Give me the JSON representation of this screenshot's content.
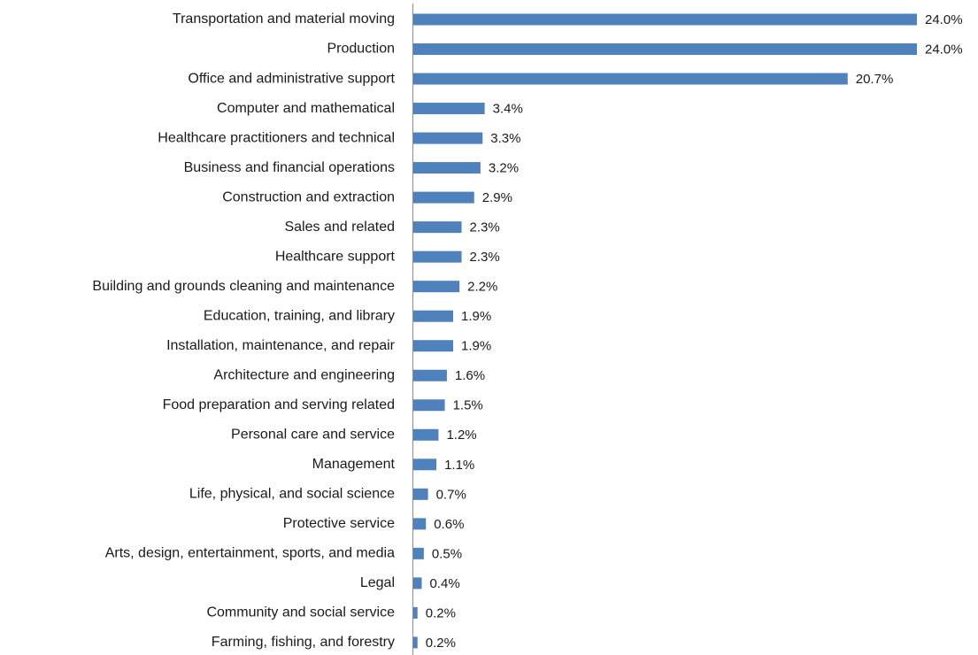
{
  "chart_data": {
    "type": "bar",
    "orientation": "horizontal",
    "color": "#4f81bd",
    "categories": [
      "Transportation and material moving",
      "Production",
      "Office and administrative support",
      "Computer and mathematical",
      "Healthcare practitioners and technical",
      "Business and financial operations",
      "Construction and extraction",
      "Sales and related",
      "Healthcare support",
      "Building and grounds cleaning and maintenance",
      "Education, training, and library",
      "Installation, maintenance, and repair",
      "Architecture and engineering",
      "Food preparation and serving related",
      "Personal care and service",
      "Management",
      "Life, physical, and social science",
      "Protective service",
      "Arts, design, entertainment, sports, and media",
      "Legal",
      "Community and social service",
      "Farming, fishing, and forestry"
    ],
    "values": [
      24.0,
      24.0,
      20.7,
      3.4,
      3.3,
      3.2,
      2.9,
      2.3,
      2.3,
      2.2,
      1.9,
      1.9,
      1.6,
      1.5,
      1.2,
      1.1,
      0.7,
      0.6,
      0.5,
      0.4,
      0.2,
      0.2
    ],
    "value_labels": [
      "24.0%",
      "24.0%",
      "20.7%",
      "3.4%",
      "3.3%",
      "3.2%",
      "2.9%",
      "2.3%",
      "2.3%",
      "2.2%",
      "1.9%",
      "1.9%",
      "1.6%",
      "1.5%",
      "1.2%",
      "1.1%",
      "0.7%",
      "0.6%",
      "0.5%",
      "0.4%",
      "0.2%",
      "0.2%"
    ]
  }
}
